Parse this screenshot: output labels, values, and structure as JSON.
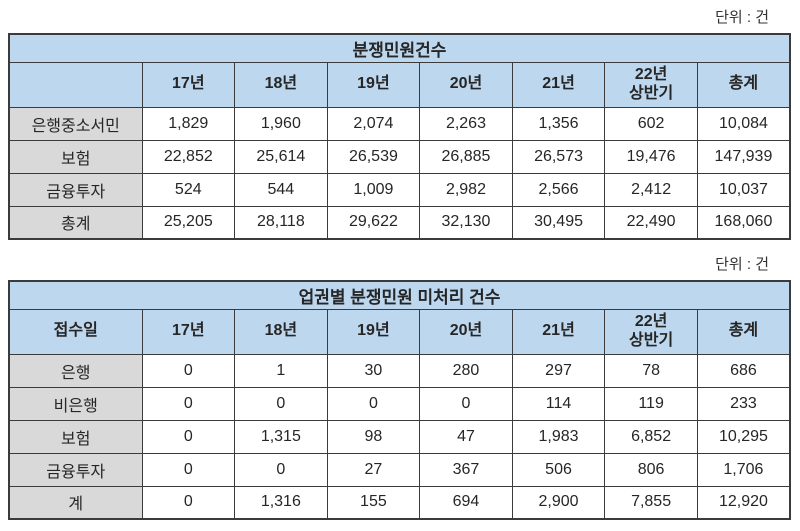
{
  "unit_label": "단위 : 건",
  "colors": {
    "header_bg": "#bdd7ee",
    "row_label_bg": "#d9d9d9",
    "border": "#3b3b3b",
    "text": "#262626"
  },
  "table1": {
    "title": "분쟁민원건수",
    "columns": [
      "",
      "17년",
      "18년",
      "19년",
      "20년",
      "21년",
      "22년\n상반기",
      "총계"
    ],
    "rows": [
      {
        "label": "은행중소서민",
        "values": [
          "1,829",
          "1,960",
          "2,074",
          "2,263",
          "1,356",
          "602",
          "10,084"
        ]
      },
      {
        "label": "보험",
        "values": [
          "22,852",
          "25,614",
          "26,539",
          "26,885",
          "26,573",
          "19,476",
          "147,939"
        ]
      },
      {
        "label": "금융투자",
        "values": [
          "524",
          "544",
          "1,009",
          "2,982",
          "2,566",
          "2,412",
          "10,037"
        ]
      },
      {
        "label": "총계",
        "values": [
          "25,205",
          "28,118",
          "29,622",
          "32,130",
          "30,495",
          "22,490",
          "168,060"
        ]
      }
    ]
  },
  "table2": {
    "title": "업권별 분쟁민원 미처리 건수",
    "columns": [
      "접수일",
      "17년",
      "18년",
      "19년",
      "20년",
      "21년",
      "22년\n상반기",
      "총계"
    ],
    "rows": [
      {
        "label": "은행",
        "values": [
          "0",
          "1",
          "30",
          "280",
          "297",
          "78",
          "686"
        ]
      },
      {
        "label": "비은행",
        "values": [
          "0",
          "0",
          "0",
          "0",
          "114",
          "119",
          "233"
        ]
      },
      {
        "label": "보험",
        "values": [
          "0",
          "1,315",
          "98",
          "47",
          "1,983",
          "6,852",
          "10,295"
        ]
      },
      {
        "label": "금융투자",
        "values": [
          "0",
          "0",
          "27",
          "367",
          "506",
          "806",
          "1,706"
        ]
      },
      {
        "label": "계",
        "values": [
          "0",
          "1,316",
          "155",
          "694",
          "2,900",
          "7,855",
          "12,920"
        ]
      }
    ]
  }
}
